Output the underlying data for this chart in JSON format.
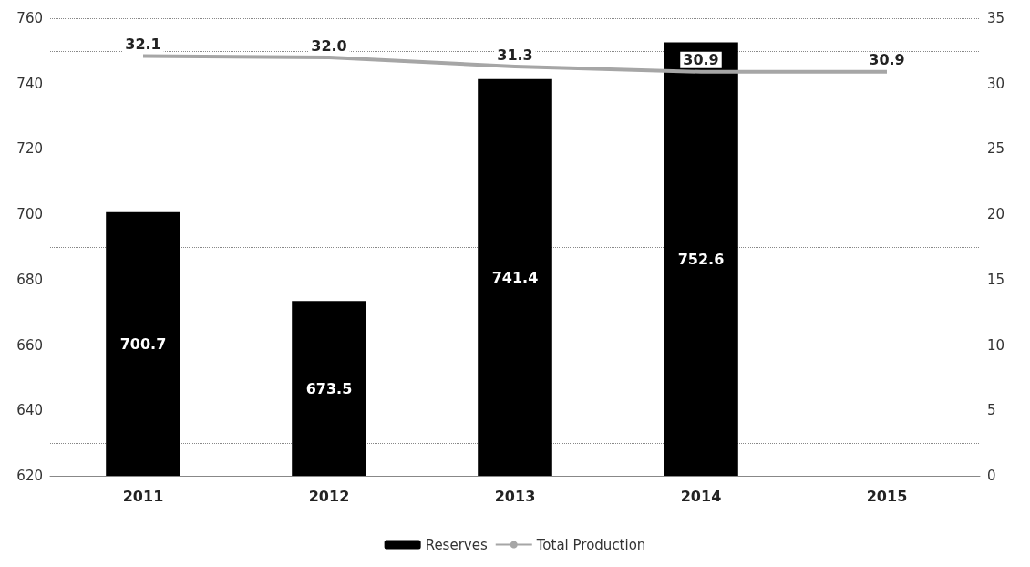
{
  "chart_data": {
    "type": "bar",
    "categories": [
      "2011",
      "2012",
      "2013",
      "2014",
      "2015"
    ],
    "series": [
      {
        "name": "Reserves",
        "color": "#000000",
        "values": [
          700.7,
          673.5,
          741.4,
          752.6,
          null
        ],
        "value_labels": [
          "700.7",
          "673.5",
          "741.4",
          "752.6",
          null
        ]
      },
      {
        "name": "Total Production",
        "type": "line",
        "axis": "y2",
        "color": "#a6a6a6",
        "marker": "none",
        "values": [
          32.1,
          32.0,
          31.3,
          30.9,
          30.9
        ],
        "value_labels": [
          "32.1",
          "32.0",
          "31.3",
          "30.9",
          "30.9"
        ]
      }
    ],
    "ylim": [
      620,
      760
    ],
    "yticks": [
      620,
      640,
      660,
      680,
      700,
      720,
      740,
      760
    ],
    "y2lim": [
      0,
      35
    ],
    "y2ticks": [
      0,
      5,
      10,
      15,
      20,
      25,
      30,
      35
    ],
    "grid": "y",
    "legend": "bottom"
  }
}
